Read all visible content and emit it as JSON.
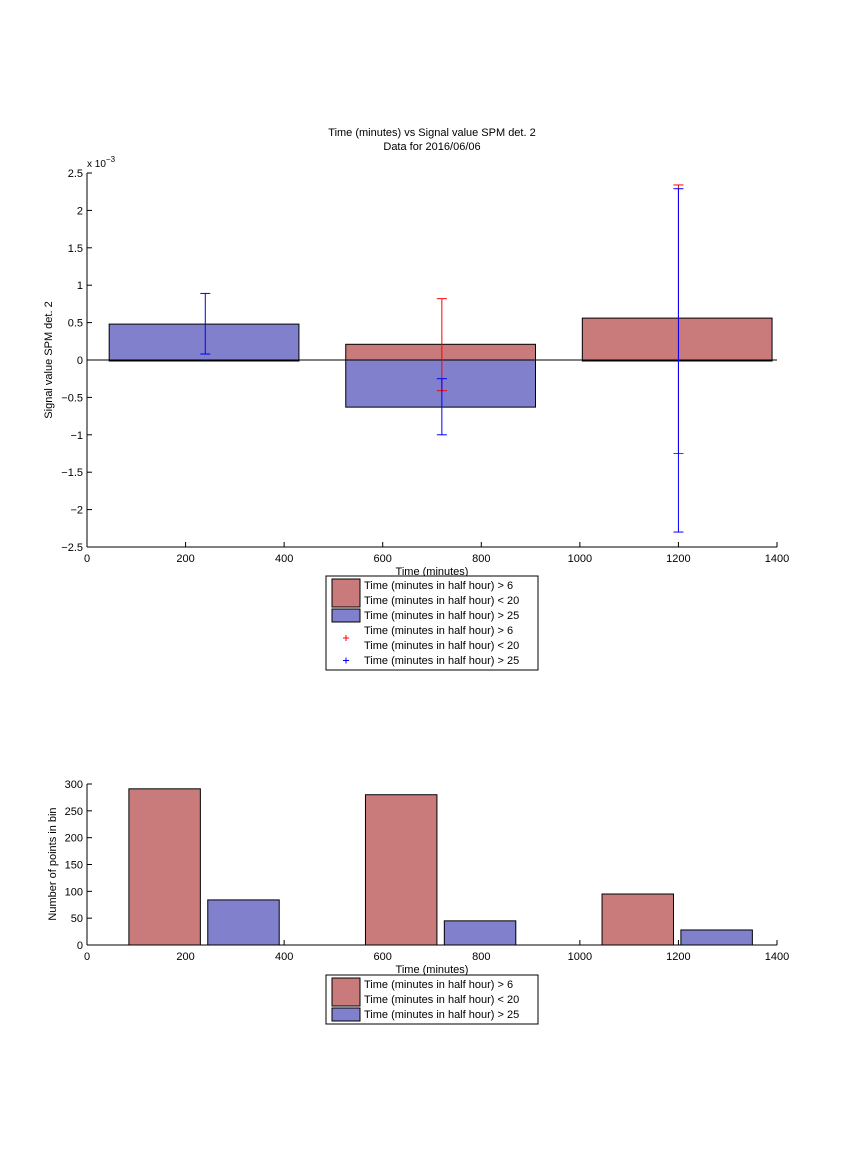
{
  "chart_data": [
    {
      "type": "bar",
      "title": "Time (minutes) vs Signal value SPM det. 2",
      "subtitle": "Data for 2016/06/06",
      "xlabel": "Time (minutes)",
      "ylabel": "Signal value SPM det. 2",
      "y_exponent_label": "x 10",
      "y_exponent": "−3",
      "xlim": [
        0,
        1400
      ],
      "ylim": [
        -2.5,
        2.5
      ],
      "x_ticks": [
        0,
        200,
        400,
        600,
        800,
        1000,
        1200,
        1400
      ],
      "x_tick_labels": [
        "0",
        "200",
        "400",
        "600",
        "800",
        "1000",
        "1200",
        "1400"
      ],
      "y_ticks": [
        -2.5,
        -2,
        -1.5,
        -1,
        -0.5,
        0,
        0.5,
        1,
        1.5,
        2,
        2.5
      ],
      "y_tick_labels": [
        "−2.5",
        "−2",
        "−1.5",
        "−1",
        "−0.5",
        "0",
        "0.5",
        "1",
        "1.5",
        "2",
        "2.5"
      ],
      "grid": false,
      "legend_position": "below",
      "bar_groups": [
        {
          "x_start": 45,
          "x_end": 430
        },
        {
          "x_start": 525,
          "x_end": 910
        },
        {
          "x_start": 1005,
          "x_end": 1390
        }
      ],
      "series": [
        {
          "name": "Time (minutes in half hour) > 6\nTime (minutes in half hour) < 20",
          "color": "#c97b7b",
          "values": [
            0.0,
            0.21,
            0.56
          ]
        },
        {
          "name": "Time (minutes in half hour) > 25",
          "color": "#8080cc",
          "values": [
            0.48,
            -0.63,
            0.0
          ]
        }
      ],
      "error_bars": [
        {
          "name": "Time (minutes in half hour) > 6\nTime (minutes in half hour) < 20",
          "color": "#ff0000",
          "x": [
            240,
            720,
            1200
          ],
          "low": [
            null,
            -0.41,
            -1.25
          ],
          "high": [
            null,
            0.82,
            2.34
          ]
        },
        {
          "name": "Time (minutes in half hour) > 25",
          "color": "#0000ff",
          "x": [
            240,
            720,
            1200
          ],
          "low": [
            0.08,
            -1.0,
            -2.3
          ],
          "high": [
            0.89,
            -0.25,
            2.29
          ]
        }
      ],
      "legend": [
        {
          "kind": "patch",
          "color": "#c97b7b",
          "lines": [
            "Time (minutes in half hour) > 6",
            "Time (minutes in half hour) < 20"
          ]
        },
        {
          "kind": "patch",
          "color": "#8080cc",
          "lines": [
            "Time (minutes in half hour) > 25"
          ]
        },
        {
          "kind": "marker",
          "color": "#ff0000",
          "lines": [
            "Time (minutes in half hour) > 6",
            "Time (minutes in half hour) < 20"
          ]
        },
        {
          "kind": "marker",
          "color": "#0000ff",
          "lines": [
            "Time (minutes in half hour) > 25"
          ]
        }
      ]
    },
    {
      "type": "bar",
      "title": "",
      "xlabel": "Time (minutes)",
      "ylabel": "Number of points in bin",
      "xlim": [
        0,
        1400
      ],
      "ylim": [
        0,
        300
      ],
      "x_ticks": [
        0,
        200,
        400,
        600,
        800,
        1000,
        1200,
        1400
      ],
      "x_tick_labels": [
        "0",
        "200",
        "400",
        "600",
        "800",
        "1000",
        "1200",
        "1400"
      ],
      "y_ticks": [
        0,
        50,
        100,
        150,
        200,
        250,
        300
      ],
      "y_tick_labels": [
        "0",
        "50",
        "100",
        "150",
        "200",
        "250",
        "300"
      ],
      "grid": false,
      "legend_position": "below",
      "series": [
        {
          "name": "Time (minutes in half hour) > 6\nTime (minutes in half hour) < 20",
          "color": "#c97b7b",
          "bars": [
            {
              "x_start": 85,
              "x_end": 230,
              "value": 291
            },
            {
              "x_start": 565,
              "x_end": 710,
              "value": 280
            },
            {
              "x_start": 1045,
              "x_end": 1190,
              "value": 95
            }
          ]
        },
        {
          "name": "Time (minutes in half hour) > 25",
          "color": "#8080cc",
          "bars": [
            {
              "x_start": 245,
              "x_end": 390,
              "value": 84
            },
            {
              "x_start": 725,
              "x_end": 870,
              "value": 45
            },
            {
              "x_start": 1205,
              "x_end": 1350,
              "value": 28
            }
          ]
        }
      ],
      "legend": [
        {
          "kind": "patch",
          "color": "#c97b7b",
          "lines": [
            "Time (minutes in half hour) > 6",
            "Time (minutes in half hour) < 20"
          ]
        },
        {
          "kind": "patch",
          "color": "#8080cc",
          "lines": [
            "Time (minutes in half hour) > 25"
          ]
        }
      ]
    }
  ]
}
